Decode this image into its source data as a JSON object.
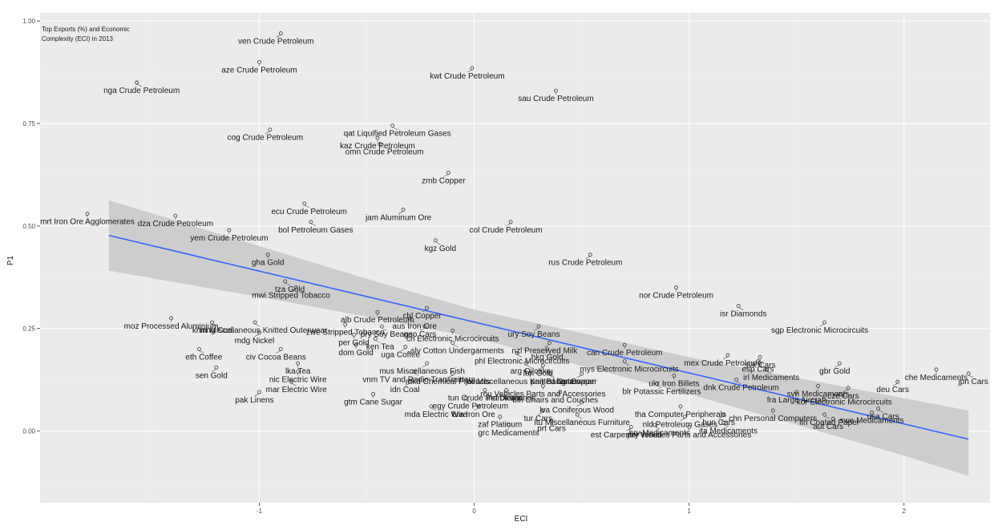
{
  "chart_data": {
    "type": "scatter",
    "title": "",
    "annotation_lines": [
      "Top Exports (%) and Economic",
      "Complexity (ECI) in 2013"
    ],
    "xlabel": "ECI",
    "ylabel": "P1",
    "xlim": [
      -2.02,
      2.4
    ],
    "ylim": [
      -0.175,
      1.02
    ],
    "x_ticks": [
      -1,
      0,
      1,
      2
    ],
    "x_tick_labels": [
      "-1",
      "0",
      "1",
      "2"
    ],
    "y_ticks": [
      0.0,
      0.25,
      0.5,
      0.75,
      1.0
    ],
    "y_tick_labels": [
      "0.00",
      "0.25",
      "0.50",
      "0.75",
      "1.00"
    ],
    "grid": true,
    "regression_line": {
      "x": [
        -1.7,
        2.3
      ],
      "y": [
        0.477,
        -0.02
      ],
      "color": "#3366ff"
    },
    "confidence_band": {
      "x": [
        -1.7,
        -1.0,
        -0.5,
        0.0,
        0.5,
        1.0,
        1.5,
        2.0,
        2.3
      ],
      "upper": [
        0.563,
        0.451,
        0.371,
        0.296,
        0.239,
        0.18,
        0.13,
        0.08,
        0.05
      ],
      "lower": [
        0.391,
        0.327,
        0.279,
        0.228,
        0.159,
        0.09,
        0.015,
        -0.06,
        -0.11
      ],
      "color": "#c8c8c8"
    },
    "points": [
      {
        "label": "ven Crude Petroleum",
        "x": -0.9,
        "y": 0.97
      },
      {
        "label": "aze Crude Petroleum",
        "x": -1.0,
        "y": 0.9
      },
      {
        "label": "nga Crude Petroleum",
        "x": -1.57,
        "y": 0.85
      },
      {
        "label": "kwt Crude Petroleum",
        "x": -0.01,
        "y": 0.885
      },
      {
        "label": "sau Crude Petroleum",
        "x": 0.38,
        "y": 0.83
      },
      {
        "label": "qat Liquified Petroleum Gases",
        "x": -0.38,
        "y": 0.745
      },
      {
        "label": "cog Crude Petroleum",
        "x": -0.95,
        "y": 0.735
      },
      {
        "label": "kaz Crude Petroleum",
        "x": -0.45,
        "y": 0.715
      },
      {
        "label": "omn Crude Petroleum",
        "x": -0.44,
        "y": 0.7
      },
      {
        "label": "zmb Copper",
        "x": -0.12,
        "y": 0.63
      },
      {
        "label": "mrt Iron Ore Agglomerates",
        "x": -1.8,
        "y": 0.53
      },
      {
        "label": "ecu Crude Petroleum",
        "x": -0.79,
        "y": 0.555
      },
      {
        "label": "jam Aluminum Ore",
        "x": -0.33,
        "y": 0.54
      },
      {
        "label": "dza Crude Petroleum",
        "x": -1.39,
        "y": 0.525
      },
      {
        "label": "bol Petroleum Gases",
        "x": -0.76,
        "y": 0.51
      },
      {
        "label": "col Crude Petroleum",
        "x": 0.17,
        "y": 0.51
      },
      {
        "label": "yem Crude Petroleum",
        "x": -1.14,
        "y": 0.49
      },
      {
        "label": "kgz Gold",
        "x": -0.18,
        "y": 0.465
      },
      {
        "label": "rus Crude Petroleum",
        "x": 0.54,
        "y": 0.43
      },
      {
        "label": "gha Gold",
        "x": -0.96,
        "y": 0.43
      },
      {
        "label": "tza Gold",
        "x": -0.88,
        "y": 0.365
      },
      {
        "label": "mwi Stripped Tobacco",
        "x": -0.83,
        "y": 0.35
      },
      {
        "label": "nor Crude Petroleum",
        "x": 0.94,
        "y": 0.35
      },
      {
        "label": "isr Diamonds",
        "x": 1.23,
        "y": 0.305
      },
      {
        "label": "chl Copper",
        "x": -0.22,
        "y": 0.3
      },
      {
        "label": "alb Crude Petroleum",
        "x": -0.45,
        "y": 0.29
      },
      {
        "label": "aus Iron Ore",
        "x": -0.3,
        "y": 0.275
      },
      {
        "label": "ury Soy Beans",
        "x": 0.3,
        "y": 0.255
      },
      {
        "label": "moz Processed Aluminium",
        "x": -1.41,
        "y": 0.275
      },
      {
        "label": "khm Miscellaneous Knitted Outerwear",
        "x": -1.02,
        "y": 0.265
      },
      {
        "label": "sgp Electronic Microcircuits",
        "x": 1.63,
        "y": 0.265
      },
      {
        "label": "zwe Stripped Tobacco",
        "x": -0.6,
        "y": 0.26
      },
      {
        "label": "pry Soy Beans",
        "x": -0.43,
        "y": 0.255
      },
      {
        "label": "geo Cars",
        "x": -0.23,
        "y": 0.255
      },
      {
        "label": "cri Electronic Microcircuits",
        "x": -0.1,
        "y": 0.245
      },
      {
        "label": "mng Coal",
        "x": -1.22,
        "y": 0.265
      },
      {
        "label": "mdg Nickel",
        "x": -1.0,
        "y": 0.24
      },
      {
        "label": "per Gold",
        "x": -0.56,
        "y": 0.235
      },
      {
        "label": "ken Tea",
        "x": -0.46,
        "y": 0.225
      },
      {
        "label": "nzl Preserved Milk",
        "x": 0.35,
        "y": 0.215
      },
      {
        "label": "can Crude Petroleum",
        "x": 0.7,
        "y": 0.21
      },
      {
        "label": "slv Cotton Undergarments",
        "x": -0.1,
        "y": 0.215
      },
      {
        "label": "uga Coffee",
        "x": -0.32,
        "y": 0.205
      },
      {
        "label": "dom Gold",
        "x": -0.55,
        "y": 0.21
      },
      {
        "label": "eth Coffee",
        "x": -1.28,
        "y": 0.2
      },
      {
        "label": "civ Cocoa Beans",
        "x": -0.9,
        "y": 0.2
      },
      {
        "label": "hkg Gold",
        "x": 0.34,
        "y": 0.2
      },
      {
        "label": "phl Electronic Microcircuits",
        "x": 0.2,
        "y": 0.19
      },
      {
        "label": "mex Crude Petroleum",
        "x": 1.18,
        "y": 0.185
      },
      {
        "label": "svk Cars",
        "x": 1.33,
        "y": 0.18
      },
      {
        "label": "mys Electronic Microcircuits",
        "x": 0.7,
        "y": 0.17
      },
      {
        "label": "mus Miscellaneous Fish",
        "x": -0.22,
        "y": 0.165
      },
      {
        "label": "lka Tea",
        "x": -0.82,
        "y": 0.165
      },
      {
        "label": "arg Oilcake",
        "x": 0.24,
        "y": 0.165
      },
      {
        "label": "lbn Gold",
        "x": 0.32,
        "y": 0.16
      },
      {
        "label": "esp Cars",
        "x": 1.32,
        "y": 0.17
      },
      {
        "label": "irl Medicaments",
        "x": 1.36,
        "y": 0.15
      },
      {
        "label": "gbr Gold",
        "x": 1.7,
        "y": 0.165
      },
      {
        "label": "che Medicaments",
        "x": 2.15,
        "y": 0.15
      },
      {
        "label": "jpn Cars",
        "x": 2.3,
        "y": 0.14
      },
      {
        "label": "sen Gold",
        "x": -1.2,
        "y": 0.155
      },
      {
        "label": "nic Electric Wire",
        "x": -0.82,
        "y": 0.145
      },
      {
        "label": "vnm TV and Radio Transmitters",
        "x": -0.28,
        "y": 0.145
      },
      {
        "label": "mkd Chemical Products",
        "x": -0.1,
        "y": 0.14
      },
      {
        "label": "jor Miscellaneous Knitted Outerwear",
        "x": 0.26,
        "y": 0.14
      },
      {
        "label": "pan Bananas",
        "x": 0.35,
        "y": 0.14
      },
      {
        "label": "bgr Copper",
        "x": 0.5,
        "y": 0.14
      },
      {
        "label": "ukr Iron Billets",
        "x": 0.93,
        "y": 0.135
      },
      {
        "label": "dnk Crude Petroleum",
        "x": 1.22,
        "y": 0.125
      },
      {
        "label": "deu Cars",
        "x": 1.97,
        "y": 0.12
      },
      {
        "label": "svn Medicaments",
        "x": 1.6,
        "y": 0.11
      },
      {
        "label": "mar Electric Wire",
        "x": -0.85,
        "y": 0.12
      },
      {
        "label": "idn Coal",
        "x": -0.3,
        "y": 0.12
      },
      {
        "label": "rou Vehicles Parts and Accessories",
        "x": 0.32,
        "y": 0.11
      },
      {
        "label": "blr Potassic Fertilizers",
        "x": 0.85,
        "y": 0.115
      },
      {
        "label": "cze Cars",
        "x": 1.74,
        "y": 0.105
      },
      {
        "label": "tun Crude Petroleum",
        "x": 0.05,
        "y": 0.1
      },
      {
        "label": "ind Diamonds",
        "x": 0.15,
        "y": 0.1
      },
      {
        "label": "bih Chairs and Couches",
        "x": 0.4,
        "y": 0.095
      },
      {
        "label": "fra Large Aircraft",
        "x": 1.5,
        "y": 0.095
      },
      {
        "label": "kor Electronic Microcircuits",
        "x": 1.7,
        "y": 0.09
      },
      {
        "label": "pak Linens",
        "x": -1.0,
        "y": 0.095
      },
      {
        "label": "gtm Cane Sugar",
        "x": -0.47,
        "y": 0.09
      },
      {
        "label": "egy Crude Petroleum",
        "x": -0.04,
        "y": 0.08
      },
      {
        "label": "lva Coniferous Wood",
        "x": 0.5,
        "y": 0.07
      },
      {
        "label": "tha Computer Peripherals",
        "x": 0.96,
        "y": 0.06
      },
      {
        "label": "usa Cars",
        "x": 1.88,
        "y": 0.055
      },
      {
        "label": "bra Iron Ore",
        "x": 0.02,
        "y": 0.06
      },
      {
        "label": "chn Personal Computers",
        "x": 1.39,
        "y": 0.05
      },
      {
        "label": "mda Electric Wire",
        "x": -0.2,
        "y": 0.06
      },
      {
        "label": "tur Cars",
        "x": 0.32,
        "y": 0.05
      },
      {
        "label": "swe Medicaments",
        "x": 1.85,
        "y": 0.045
      },
      {
        "label": "fin Coated Paper",
        "x": 1.63,
        "y": 0.04
      },
      {
        "label": "hun Cars",
        "x": 1.16,
        "y": 0.04
      },
      {
        "label": "zaf Platinum",
        "x": 0.12,
        "y": 0.035
      },
      {
        "label": "ltu Miscellaneous Furniture",
        "x": 0.48,
        "y": 0.04
      },
      {
        "label": "nld Petroleum Gases",
        "x": 0.98,
        "y": 0.035
      },
      {
        "label": "prt Cars",
        "x": 0.36,
        "y": 0.025
      },
      {
        "label": "ita Medicaments",
        "x": 1.16,
        "y": 0.02
      },
      {
        "label": "aut Cars",
        "x": 1.67,
        "y": 0.03
      },
      {
        "label": "grc Medicaments",
        "x": 0.16,
        "y": 0.015
      },
      {
        "label": "hrv Medicaments",
        "x": 0.84,
        "y": 0.015
      },
      {
        "label": "est Carpentry Wood",
        "x": 0.73,
        "y": 0.01
      },
      {
        "label": "pol Vehicles Parts and Accessories",
        "x": 1.0,
        "y": 0.01
      }
    ]
  }
}
